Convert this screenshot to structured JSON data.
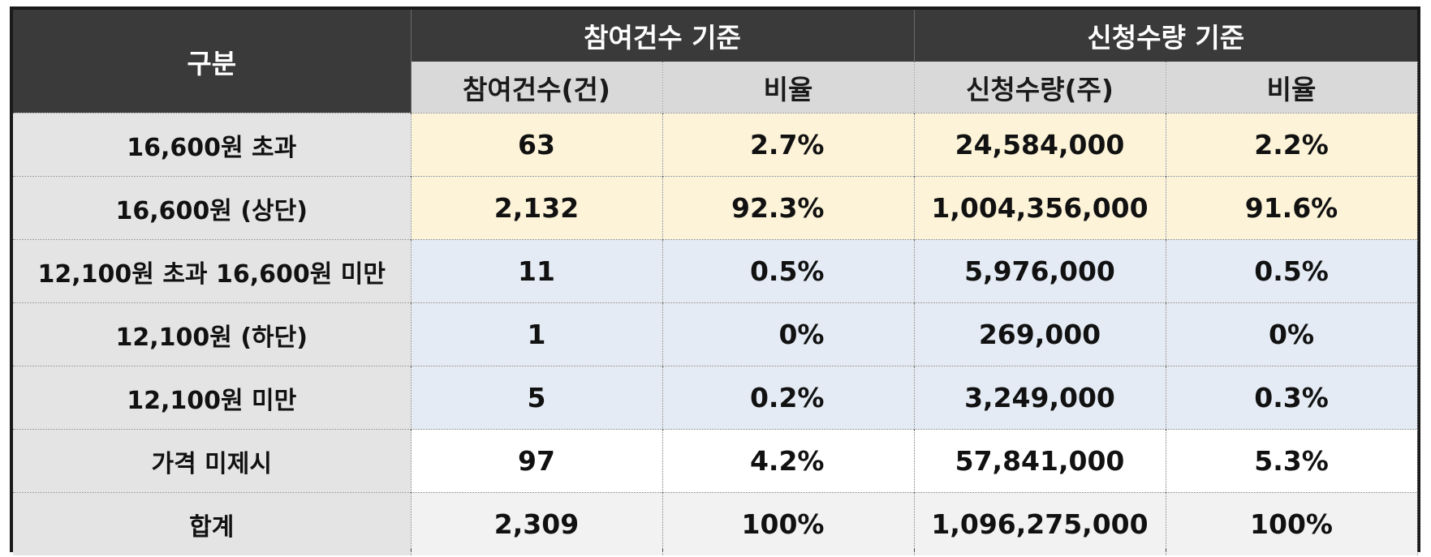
{
  "table": {
    "corner_label": "구분",
    "group_headers": [
      "참여건수 기준",
      "신청수량 기준"
    ],
    "sub_headers": [
      "참여건수(건)",
      "비율",
      "신청수량(주)",
      "비율"
    ],
    "rows": [
      {
        "label": "16,600원 초과",
        "count": "63",
        "count_ratio": "2.7%",
        "qty": "24,584,000",
        "qty_ratio": "2.2%"
      },
      {
        "label": "16,600원 (상단)",
        "count": "2,132",
        "count_ratio": "92.3%",
        "qty": "1,004,356,000",
        "qty_ratio": "91.6%"
      },
      {
        "label": "12,100원 초과 16,600원 미만",
        "count": "11",
        "count_ratio": "0.5%",
        "qty": "5,976,000",
        "qty_ratio": "0.5%"
      },
      {
        "label": "12,100원 (하단)",
        "count": "1",
        "count_ratio": "0%",
        "qty": "269,000",
        "qty_ratio": "0%"
      },
      {
        "label": "12,100원 미만",
        "count": "5",
        "count_ratio": "0.2%",
        "qty": "3,249,000",
        "qty_ratio": "0.3%"
      },
      {
        "label": "가격 미제시",
        "count": "97",
        "count_ratio": "4.2%",
        "qty": "57,841,000",
        "qty_ratio": "5.3%"
      },
      {
        "label": "합계",
        "count": "2,309",
        "count_ratio": "100%",
        "qty": "1,096,275,000",
        "qty_ratio": "100%"
      }
    ],
    "colors": {
      "header_dark": "#3a3a3a",
      "subheader_gray": "#d9d9d9",
      "label_gray": "#e4e4e4",
      "highlight_yellow": "#fcf3d8",
      "highlight_blue": "#e4ebf4",
      "total_gray": "#f2f2f2"
    }
  }
}
